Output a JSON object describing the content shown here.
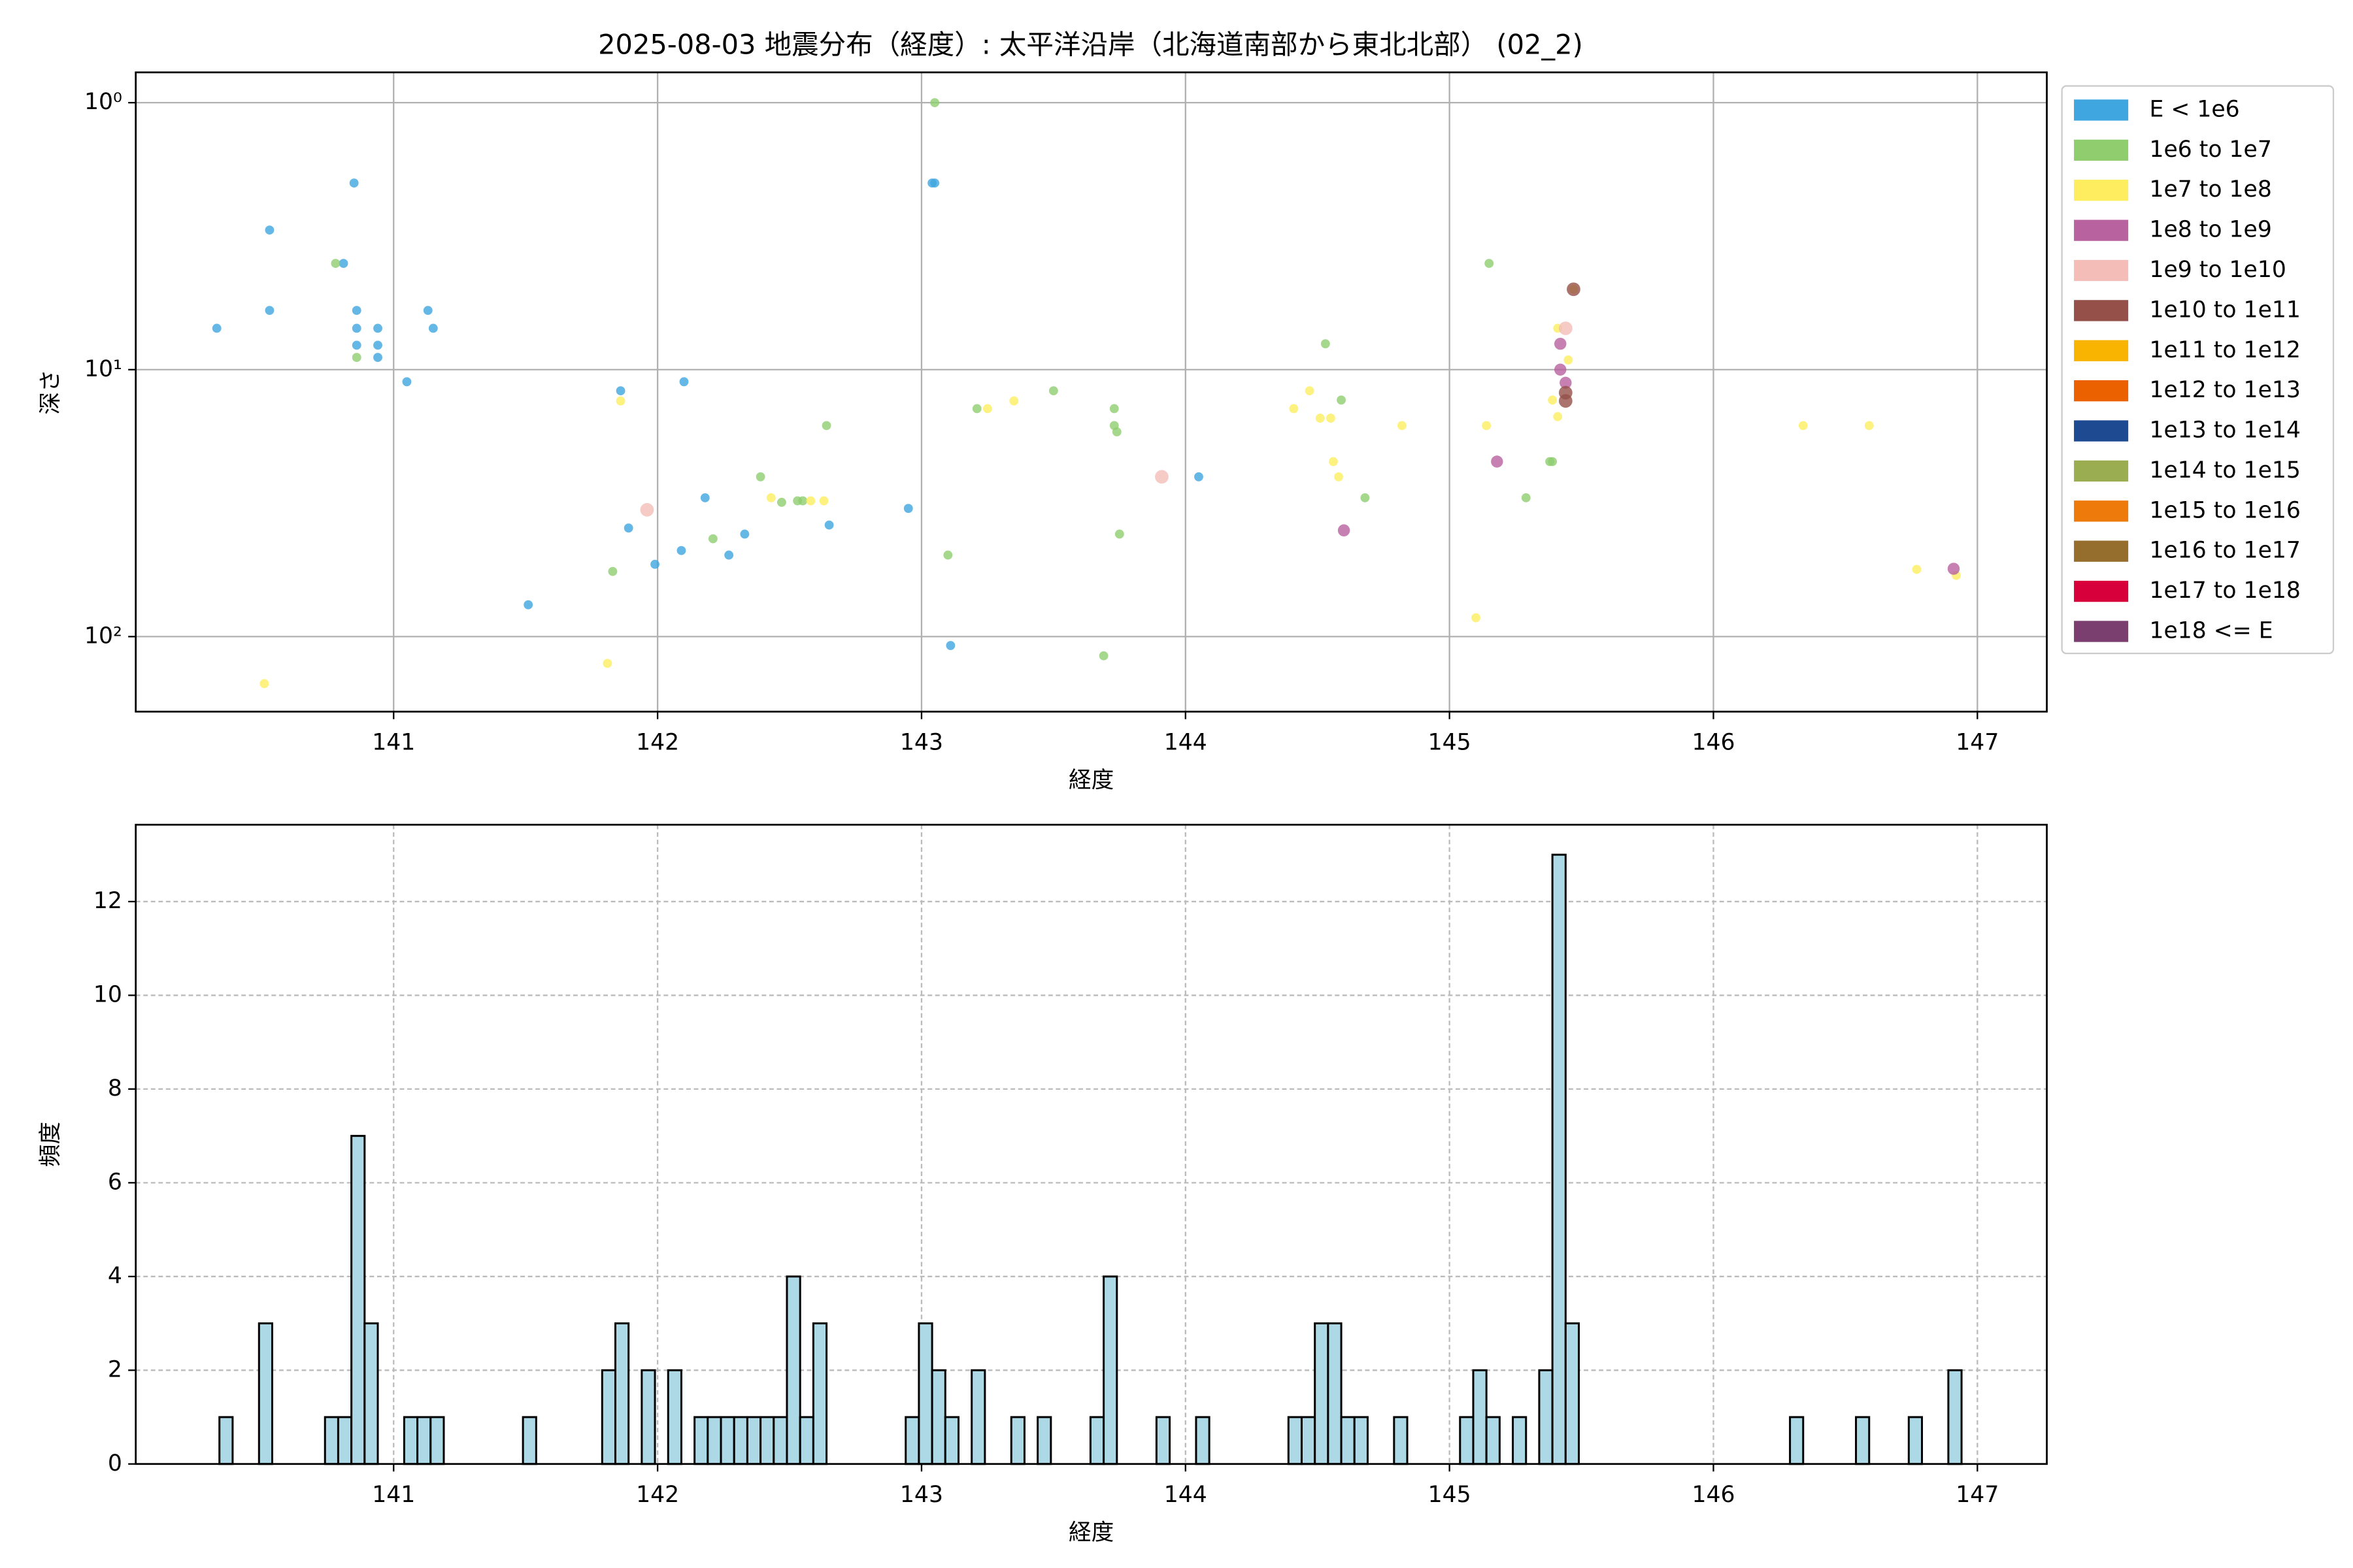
{
  "chart_data": [
    {
      "type": "scatter",
      "title": "2025-08-03 地震分布（経度）: 太平洋沿岸（北海道南部から東北北部） (02_2)",
      "xlabel": "経度",
      "ylabel": "深さ",
      "xlim": [
        140.023,
        147.263
      ],
      "xticks": [
        141,
        142,
        143,
        144,
        145,
        146,
        147
      ],
      "ylim": [
        191,
        0.77
      ],
      "log_y": true,
      "grid": true,
      "legend": "outside upper right",
      "yticks": [
        {
          "value": 1,
          "label": "10⁰"
        },
        {
          "value": 10,
          "label": "10¹"
        },
        {
          "value": 100,
          "label": "10²"
        }
      ],
      "series": [
        {
          "name": "E < 1e6",
          "color": "#3fa6e0",
          "x": [
            140.33,
            140.53,
            140.53,
            140.85,
            140.81,
            140.86,
            140.86,
            140.86,
            140.94,
            140.94,
            140.94,
            141.13,
            141.15,
            141.05,
            141.86,
            142.1,
            141.89,
            141.99,
            142.09,
            142.18,
            142.27,
            142.33,
            142.65,
            142.95,
            141.51,
            143.04,
            143.05,
            143.11,
            144.05
          ],
          "values": [
            7.0,
            3.0,
            6.0,
            2.0,
            4.0,
            6.0,
            7.0,
            8.1,
            7.0,
            8.1,
            9.0,
            6.0,
            7.0,
            11.1,
            12.0,
            11.1,
            39.2,
            53.6,
            47.6,
            30.2,
            49.5,
            41.3,
            38.2,
            33.1,
            76,
            2.0,
            2.0,
            108,
            25.2
          ]
        },
        {
          "name": "1e6 to 1e7",
          "color": "#8fcd6f",
          "x": [
            143.05,
            140.78,
            140.86,
            141.83,
            142.39,
            142.47,
            142.53,
            142.55,
            142.64,
            142.21,
            143.1,
            143.21,
            143.5,
            143.73,
            143.73,
            143.74,
            143.75,
            143.69,
            144.53,
            144.59,
            144.68,
            145.15,
            145.29,
            145.38,
            145.39
          ],
          "values": [
            1.0,
            4.0,
            9.0,
            57,
            25.2,
            31.4,
            31,
            31,
            16.2,
            43,
            49.5,
            14.0,
            12.0,
            14.0,
            16.2,
            17.1,
            41.3,
            118,
            8.0,
            13.0,
            30.2,
            4.0,
            30.2,
            22.1,
            22.1
          ]
        },
        {
          "name": "1e7 to 1e8",
          "color": "#fded5f",
          "x": [
            140.51,
            141.86,
            141.81,
            142.43,
            142.58,
            142.63,
            143.25,
            143.35,
            144.41,
            144.47,
            144.51,
            144.55,
            144.56,
            144.58,
            144.82,
            145.1,
            145.14,
            145.41,
            145.45,
            145.41,
            145.39,
            145.47,
            146.34,
            146.59,
            146.77,
            146.92
          ],
          "values": [
            150,
            13.1,
            126,
            30.2,
            31,
            31,
            14.0,
            13.1,
            14.0,
            12.0,
            15.2,
            15.2,
            22.1,
            25.2,
            16.2,
            85,
            16.2,
            7.0,
            9.2,
            15,
            13,
            5.0,
            16.2,
            16.2,
            56,
            59
          ]
        },
        {
          "name": "1e8 to 1e9",
          "color": "#b8629f",
          "x": [
            145.18,
            144.6,
            145.42,
            145.42,
            145.44,
            146.91
          ],
          "values": [
            22.1,
            40,
            8.0,
            10,
            11.2,
            55.7
          ]
        },
        {
          "name": "1e9 to 1e10",
          "color": "#f4bdb7",
          "x": [
            141.96,
            143.91,
            145.44
          ],
          "values": [
            33.5,
            25.2,
            7.0
          ]
        },
        {
          "name": "1e10 to 1e11",
          "color": "#95504a",
          "x": [
            145.44,
            145.44,
            145.47
          ],
          "values": [
            12.2,
            13.1,
            5.0
          ]
        },
        {
          "name": "1e11 to 1e12",
          "color": "#f8b400",
          "x": [],
          "values": []
        },
        {
          "name": "1e12 to 1e13",
          "color": "#eb6100",
          "x": [],
          "values": []
        },
        {
          "name": "1e13 to 1e14",
          "color": "#1d4a91",
          "x": [],
          "values": []
        },
        {
          "name": "1e14 to 1e15",
          "color": "#9aad50",
          "x": [],
          "values": []
        },
        {
          "name": "1e15 to 1e16",
          "color": "#ef7a0c",
          "x": [],
          "values": []
        },
        {
          "name": "1e16 to 1e17",
          "color": "#956e2d",
          "x": [],
          "values": []
        },
        {
          "name": "1e17 to 1e18",
          "color": "#d7003a",
          "x": [],
          "values": []
        },
        {
          "name": "1e18 <= E",
          "color": "#7a3f6e",
          "x": [],
          "values": []
        }
      ]
    },
    {
      "type": "histogram",
      "xlabel": "経度",
      "ylabel": "頻度",
      "color": "#add8e6",
      "edgecolor": "#000000",
      "xlim": [
        140.023,
        147.263
      ],
      "xticks": [
        141,
        142,
        143,
        144,
        145,
        146,
        147
      ],
      "ylim": [
        0,
        13.64
      ],
      "yticks": [
        0,
        2,
        4,
        6,
        8,
        10,
        12
      ],
      "grid": "dashed",
      "bins": [
        140.34,
        140.39,
        140.44,
        140.49,
        140.54,
        140.59,
        140.64,
        140.69,
        140.74,
        140.79,
        140.84,
        140.89,
        140.94,
        140.99,
        141.04,
        141.09,
        141.14,
        141.19,
        141.24,
        141.29,
        141.34,
        141.39,
        141.44,
        141.49,
        141.54,
        141.59,
        141.64,
        141.69,
        141.74,
        141.79,
        141.84,
        141.89,
        141.94,
        141.99,
        142.04,
        142.09,
        142.14,
        142.19,
        142.24,
        142.29,
        142.34,
        142.39,
        142.44,
        142.49,
        142.54,
        142.59,
        142.64,
        142.69,
        142.74,
        142.79,
        142.84,
        142.89,
        142.94,
        142.99,
        143.04,
        143.09,
        143.14,
        143.19,
        143.24,
        143.29,
        143.34,
        143.39,
        143.44,
        143.49,
        143.54,
        143.59,
        143.64,
        143.69,
        143.74,
        143.79,
        143.84,
        143.89,
        143.94,
        143.99,
        144.04,
        144.09,
        144.14,
        144.19,
        144.24,
        144.29,
        144.34,
        144.39,
        144.44,
        144.49,
        144.54,
        144.59,
        144.64,
        144.69,
        144.74,
        144.79,
        144.84,
        144.89,
        144.94,
        144.99,
        145.04,
        145.09,
        145.14,
        145.19,
        145.24,
        145.29,
        145.34,
        145.39,
        145.44,
        145.49,
        145.54,
        145.59,
        145.64,
        145.69,
        145.74,
        145.79,
        145.84,
        145.89,
        145.94,
        145.99,
        146.04,
        146.09,
        146.14,
        146.19,
        146.24,
        146.29,
        146.34,
        146.39,
        146.44,
        146.49,
        146.54,
        146.59,
        146.64,
        146.69,
        146.74,
        146.79,
        146.84,
        146.89,
        146.94
      ],
      "counts": [
        1,
        0,
        0,
        3,
        0,
        0,
        0,
        0,
        1,
        1,
        7,
        3,
        0,
        0,
        1,
        1,
        1,
        0,
        0,
        0,
        0,
        0,
        0,
        1,
        0,
        0,
        0,
        0,
        0,
        2,
        3,
        0,
        2,
        0,
        2,
        0,
        1,
        1,
        1,
        1,
        1,
        1,
        1,
        4,
        1,
        3,
        0,
        0,
        0,
        0,
        0,
        0,
        1,
        3,
        2,
        1,
        0,
        2,
        0,
        0,
        1,
        0,
        1,
        0,
        0,
        0,
        1,
        4,
        0,
        0,
        0,
        1,
        0,
        0,
        1,
        0,
        0,
        0,
        0,
        0,
        0,
        1,
        1,
        3,
        3,
        1,
        1,
        0,
        0,
        1,
        0,
        0,
        0,
        0,
        1,
        2,
        1,
        0,
        1,
        0,
        2,
        13,
        3,
        0,
        0,
        0,
        0,
        0,
        0,
        0,
        0,
        0,
        0,
        0,
        0,
        0,
        0,
        0,
        0,
        1,
        0,
        0,
        0,
        0,
        1,
        0,
        0,
        0,
        1,
        0,
        0,
        2
      ]
    }
  ]
}
